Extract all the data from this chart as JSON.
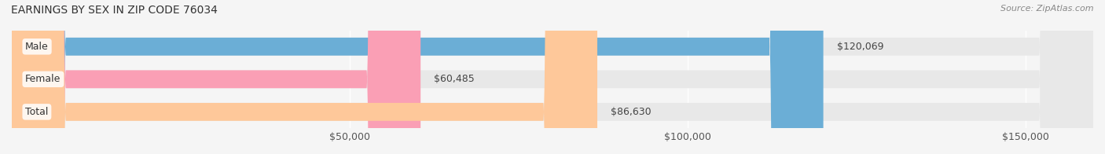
{
  "title": "EARNINGS BY SEX IN ZIP CODE 76034",
  "source": "Source: ZipAtlas.com",
  "categories": [
    "Male",
    "Female",
    "Total"
  ],
  "values": [
    120069,
    60485,
    86630
  ],
  "bar_colors": [
    "#6baed6",
    "#fa9fb5",
    "#fec89a"
  ],
  "label_colors": [
    "#6baed6",
    "#fa9fb5",
    "#fec89a"
  ],
  "bar_labels": [
    "$120,069",
    "$60,485",
    "$86,630"
  ],
  "xlim": [
    0,
    160000
  ],
  "xticks": [
    50000,
    100000,
    150000
  ],
  "xtick_labels": [
    "$50,000",
    "$100,000",
    "$150,000"
  ],
  "title_fontsize": 10,
  "source_fontsize": 8,
  "tick_fontsize": 9,
  "bar_label_fontsize": 9,
  "category_fontsize": 9,
  "background_color": "#f5f5f5",
  "bar_background_color": "#e8e8e8",
  "bar_height": 0.55
}
